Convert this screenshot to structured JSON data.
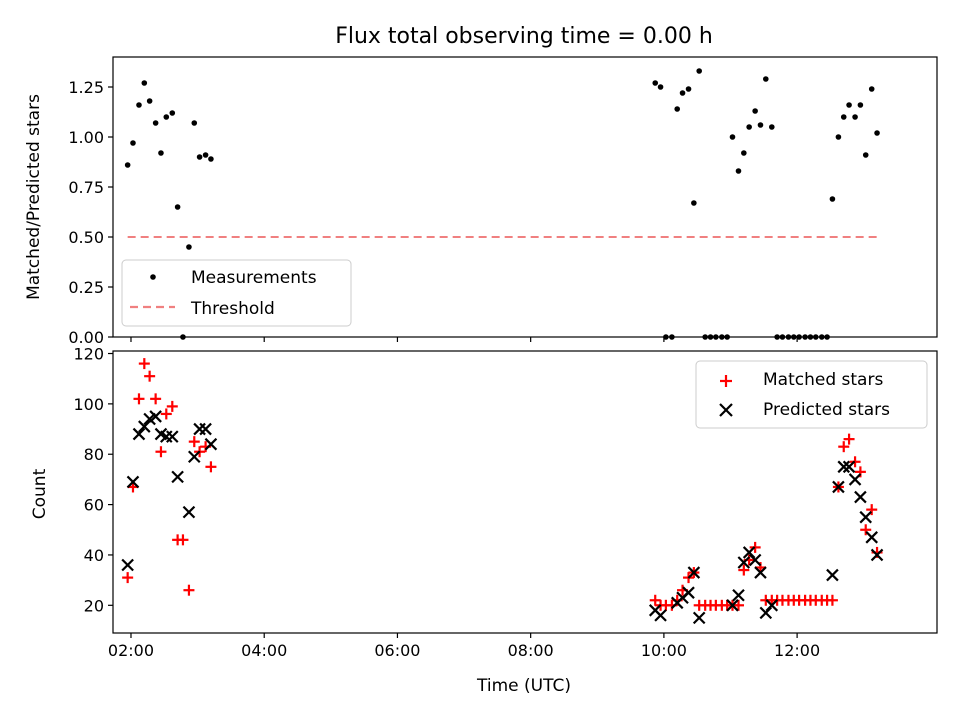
{
  "figure": {
    "title": "Flux total observing time = 0.00 h",
    "xlabel": "Time (UTC)"
  },
  "chart_data": [
    {
      "type": "scatter",
      "panel": "top",
      "ylabel": "Matched/Predicted stars",
      "xlim": [
        1.73,
        14.1
      ],
      "ylim": [
        0,
        1.4
      ],
      "yticks": [
        0,
        0.25,
        0.5,
        0.75,
        1.0,
        1.25
      ],
      "ytick_labels": [
        "0.00",
        "0.25",
        "0.50",
        "0.75",
        "1.00",
        "1.25"
      ],
      "legend_position": "lower-left",
      "series": [
        {
          "name": "Measurements",
          "marker": "dot",
          "color": "#000000",
          "points": [
            [
              1.95,
              0.86
            ],
            [
              2.03,
              0.97
            ],
            [
              2.12,
              1.16
            ],
            [
              2.2,
              1.27
            ],
            [
              2.28,
              1.18
            ],
            [
              2.37,
              1.07
            ],
            [
              2.45,
              0.92
            ],
            [
              2.53,
              1.1
            ],
            [
              2.62,
              1.12
            ],
            [
              2.7,
              0.65
            ],
            [
              2.78,
              0.0
            ],
            [
              2.87,
              0.45
            ],
            [
              2.95,
              1.07
            ],
            [
              3.03,
              0.9
            ],
            [
              3.12,
              0.91
            ],
            [
              3.2,
              0.89
            ],
            [
              9.87,
              1.27
            ],
            [
              9.95,
              1.25
            ],
            [
              10.03,
              0.0
            ],
            [
              10.12,
              0.0
            ],
            [
              10.2,
              1.14
            ],
            [
              10.28,
              1.22
            ],
            [
              10.37,
              1.24
            ],
            [
              10.45,
              0.67
            ],
            [
              10.53,
              1.33
            ],
            [
              10.62,
              0.0
            ],
            [
              10.7,
              0.0
            ],
            [
              10.78,
              0.0
            ],
            [
              10.87,
              0.0
            ],
            [
              10.95,
              0.0
            ],
            [
              11.03,
              1.0
            ],
            [
              11.12,
              0.83
            ],
            [
              11.2,
              0.92
            ],
            [
              11.28,
              1.05
            ],
            [
              11.37,
              1.13
            ],
            [
              11.45,
              1.06
            ],
            [
              11.53,
              1.29
            ],
            [
              11.62,
              1.05
            ],
            [
              11.7,
              0.0
            ],
            [
              11.78,
              0.0
            ],
            [
              11.87,
              0.0
            ],
            [
              11.95,
              0.0
            ],
            [
              12.03,
              0.0
            ],
            [
              12.12,
              0.0
            ],
            [
              12.2,
              0.0
            ],
            [
              12.28,
              0.0
            ],
            [
              12.37,
              0.0
            ],
            [
              12.45,
              0.0
            ],
            [
              12.53,
              0.69
            ],
            [
              12.62,
              1.0
            ],
            [
              12.7,
              1.1
            ],
            [
              12.78,
              1.16
            ],
            [
              12.87,
              1.1
            ],
            [
              12.95,
              1.16
            ],
            [
              13.03,
              0.91
            ],
            [
              13.12,
              1.24
            ],
            [
              13.2,
              1.02
            ]
          ]
        },
        {
          "name": "Threshold",
          "style": "dashed",
          "color": "#f08080",
          "points": [
            [
              1.95,
              0.5
            ],
            [
              13.2,
              0.5
            ]
          ]
        }
      ]
    },
    {
      "type": "scatter",
      "panel": "bottom",
      "ylabel": "Count",
      "xlabel": "Time (UTC)",
      "xlim": [
        1.73,
        14.1
      ],
      "ylim": [
        9,
        121
      ],
      "yticks": [
        20,
        40,
        60,
        80,
        100,
        120
      ],
      "ytick_labels": [
        "20",
        "40",
        "60",
        "80",
        "100",
        "120"
      ],
      "xticks": [
        2,
        4,
        6,
        8,
        10,
        12
      ],
      "xtick_labels": [
        "02:00",
        "04:00",
        "06:00",
        "08:00",
        "10:00",
        "12:00"
      ],
      "legend_position": "top-right",
      "series": [
        {
          "name": "Matched stars",
          "marker": "plus",
          "color": "#ff0000",
          "points": [
            [
              1.95,
              31
            ],
            [
              2.03,
              67
            ],
            [
              2.12,
              102
            ],
            [
              2.2,
              116
            ],
            [
              2.28,
              111
            ],
            [
              2.37,
              102
            ],
            [
              2.45,
              81
            ],
            [
              2.53,
              96
            ],
            [
              2.62,
              99
            ],
            [
              2.7,
              46
            ],
            [
              2.78,
              46
            ],
            [
              2.87,
              26
            ],
            [
              2.95,
              85
            ],
            [
              3.03,
              81
            ],
            [
              3.12,
              83
            ],
            [
              3.2,
              75
            ],
            [
              9.87,
              22
            ],
            [
              9.95,
              20
            ],
            [
              10.03,
              20
            ],
            [
              10.12,
              20
            ],
            [
              10.2,
              22
            ],
            [
              10.28,
              26
            ],
            [
              10.37,
              31
            ],
            [
              10.45,
              33
            ],
            [
              10.53,
              20
            ],
            [
              10.62,
              20
            ],
            [
              10.7,
              20
            ],
            [
              10.78,
              20
            ],
            [
              10.87,
              20
            ],
            [
              10.95,
              20
            ],
            [
              11.03,
              20
            ],
            [
              11.12,
              20
            ],
            [
              11.2,
              34
            ],
            [
              11.28,
              38
            ],
            [
              11.37,
              43
            ],
            [
              11.45,
              35
            ],
            [
              11.53,
              22
            ],
            [
              11.62,
              22
            ],
            [
              11.7,
              22
            ],
            [
              11.78,
              22
            ],
            [
              11.87,
              22
            ],
            [
              11.95,
              22
            ],
            [
              12.03,
              22
            ],
            [
              12.12,
              22
            ],
            [
              12.2,
              22
            ],
            [
              12.28,
              22
            ],
            [
              12.37,
              22
            ],
            [
              12.45,
              22
            ],
            [
              12.53,
              22
            ],
            [
              12.62,
              67
            ],
            [
              12.7,
              83
            ],
            [
              12.78,
              86
            ],
            [
              12.87,
              77
            ],
            [
              12.95,
              73
            ],
            [
              13.03,
              50
            ],
            [
              13.12,
              58
            ],
            [
              13.2,
              41
            ]
          ]
        },
        {
          "name": "Predicted stars",
          "marker": "x",
          "color": "#000000",
          "points": [
            [
              1.95,
              36
            ],
            [
              2.03,
              69
            ],
            [
              2.12,
              88
            ],
            [
              2.2,
              91
            ],
            [
              2.28,
              94
            ],
            [
              2.37,
              95
            ],
            [
              2.45,
              88
            ],
            [
              2.53,
              87
            ],
            [
              2.62,
              87
            ],
            [
              2.7,
              71
            ],
            [
              2.87,
              57
            ],
            [
              2.95,
              79
            ],
            [
              3.03,
              90
            ],
            [
              3.12,
              90
            ],
            [
              3.2,
              84
            ],
            [
              9.87,
              18
            ],
            [
              9.95,
              16
            ],
            [
              10.2,
              21
            ],
            [
              10.28,
              23
            ],
            [
              10.37,
              25
            ],
            [
              10.45,
              33
            ],
            [
              10.53,
              15
            ],
            [
              11.03,
              20
            ],
            [
              11.12,
              24
            ],
            [
              11.2,
              37
            ],
            [
              11.28,
              41
            ],
            [
              11.37,
              38
            ],
            [
              11.45,
              33
            ],
            [
              11.53,
              17
            ],
            [
              11.62,
              20
            ],
            [
              12.53,
              32
            ],
            [
              12.62,
              67
            ],
            [
              12.7,
              75
            ],
            [
              12.78,
              75
            ],
            [
              12.87,
              70
            ],
            [
              12.95,
              63
            ],
            [
              13.03,
              55
            ],
            [
              13.12,
              47
            ],
            [
              13.2,
              40
            ]
          ]
        }
      ]
    }
  ]
}
